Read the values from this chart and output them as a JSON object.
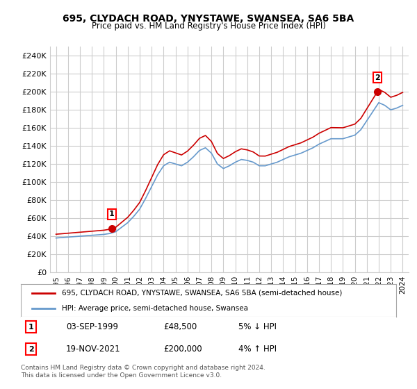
{
  "title1": "695, CLYDACH ROAD, YNYSTAWE, SWANSEA, SA6 5BA",
  "title2": "Price paid vs. HM Land Registry's House Price Index (HPI)",
  "xlabel": "",
  "ylabel": "",
  "ylim": [
    0,
    250000
  ],
  "yticks": [
    0,
    20000,
    40000,
    60000,
    80000,
    100000,
    120000,
    140000,
    160000,
    180000,
    200000,
    220000,
    240000
  ],
  "ytick_labels": [
    "£0",
    "£20K",
    "£40K",
    "£60K",
    "£80K",
    "£100K",
    "£120K",
    "£140K",
    "£160K",
    "£180K",
    "£200K",
    "£220K",
    "£240K"
  ],
  "sale1_date": "03-SEP-1999",
  "sale1_price": 48500,
  "sale1_hpi_pct": "5% ↓ HPI",
  "sale2_date": "19-NOV-2021",
  "sale2_price": 200000,
  "sale2_hpi_pct": "4% ↑ HPI",
  "legend_line1": "695, CLYDACH ROAD, YNYSTAWE, SWANSEA, SA6 5BA (semi-detached house)",
  "legend_line2": "HPI: Average price, semi-detached house, Swansea",
  "footer": "Contains HM Land Registry data © Crown copyright and database right 2024.\nThis data is licensed under the Open Government Licence v3.0.",
  "line_red_color": "#cc0000",
  "line_blue_color": "#6699cc",
  "marker_color_red": "#cc0000",
  "bg_color": "#ffffff",
  "grid_color": "#cccccc",
  "hpi_years": [
    1995,
    1995.5,
    1996,
    1996.5,
    1997,
    1997.5,
    1998,
    1998.5,
    1999,
    1999.5,
    2000,
    2000.5,
    2001,
    2001.5,
    2002,
    2002.5,
    2003,
    2003.5,
    2004,
    2004.5,
    2005,
    2005.5,
    2006,
    2006.5,
    2007,
    2007.5,
    2008,
    2008.5,
    2009,
    2009.5,
    2010,
    2010.5,
    2011,
    2011.5,
    2012,
    2012.5,
    2013,
    2013.5,
    2014,
    2014.5,
    2015,
    2015.5,
    2016,
    2016.5,
    2017,
    2017.5,
    2018,
    2018.5,
    2019,
    2019.5,
    2020,
    2020.5,
    2021,
    2021.5,
    2022,
    2022.5,
    2023,
    2023.5,
    2024
  ],
  "hpi_values": [
    38000,
    38500,
    39000,
    39500,
    40000,
    40500,
    41000,
    41500,
    42000,
    43000,
    45000,
    50000,
    55000,
    62000,
    70000,
    82000,
    95000,
    108000,
    118000,
    122000,
    120000,
    118000,
    122000,
    128000,
    135000,
    138000,
    132000,
    120000,
    115000,
    118000,
    122000,
    125000,
    124000,
    122000,
    118000,
    118000,
    120000,
    122000,
    125000,
    128000,
    130000,
    132000,
    135000,
    138000,
    142000,
    145000,
    148000,
    148000,
    148000,
    150000,
    152000,
    158000,
    168000,
    178000,
    188000,
    185000,
    180000,
    182000,
    185000
  ],
  "sale_years": [
    1999.67,
    2021.88
  ],
  "sale_prices": [
    48500,
    200000
  ],
  "xtick_years": [
    1995,
    1996,
    1997,
    1998,
    1999,
    2000,
    2001,
    2002,
    2003,
    2004,
    2005,
    2006,
    2007,
    2008,
    2009,
    2010,
    2011,
    2012,
    2013,
    2014,
    2015,
    2016,
    2017,
    2018,
    2019,
    2020,
    2021,
    2022,
    2023,
    2024
  ]
}
